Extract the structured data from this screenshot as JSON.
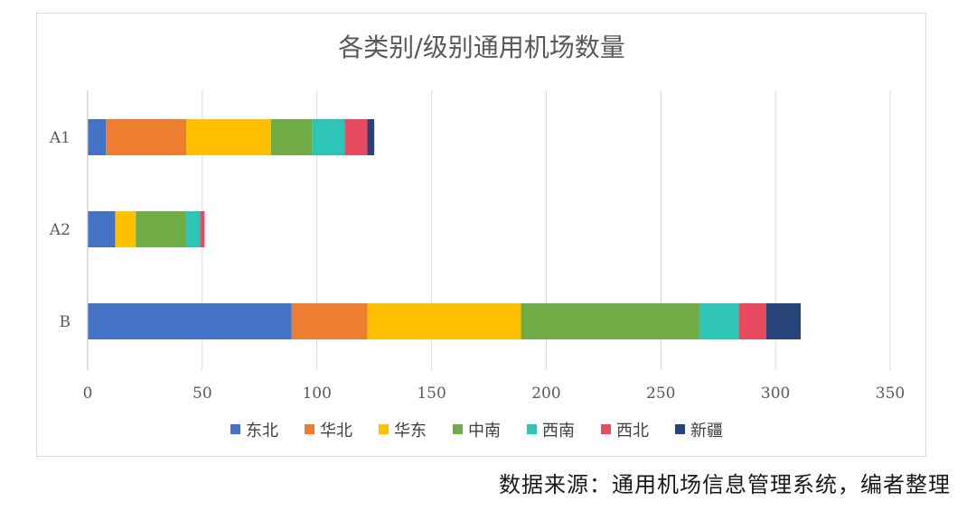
{
  "chart_data": {
    "type": "bar",
    "orientation": "horizontal",
    "stacked": true,
    "title": "各类别/级别通用机场数量",
    "categories": [
      "A1",
      "A2",
      "B"
    ],
    "series": [
      {
        "name": "东北",
        "color": "#4472C4",
        "values": [
          8,
          12,
          89
        ]
      },
      {
        "name": "华北",
        "color": "#ED7D31",
        "values": [
          35,
          0,
          33
        ]
      },
      {
        "name": "华东",
        "color": "#FFC000",
        "values": [
          37,
          9,
          67
        ]
      },
      {
        "name": "中南",
        "color": "#70AD47",
        "values": [
          18,
          22,
          78
        ]
      },
      {
        "name": "西南",
        "color": "#2EC4B6",
        "values": [
          14,
          6,
          17
        ]
      },
      {
        "name": "西北",
        "color": "#E84A5F",
        "values": [
          10,
          2,
          12
        ]
      },
      {
        "name": "新疆",
        "color": "#264478",
        "values": [
          3,
          0,
          15
        ]
      }
    ],
    "xlim": [
      0,
      350
    ],
    "xticks": [
      "0",
      "50",
      "100",
      "150",
      "200",
      "250",
      "300",
      "350"
    ],
    "grid": true,
    "legend_position": "bottom"
  },
  "source_note": "数据来源：通用机场信息管理系统，编者整理"
}
